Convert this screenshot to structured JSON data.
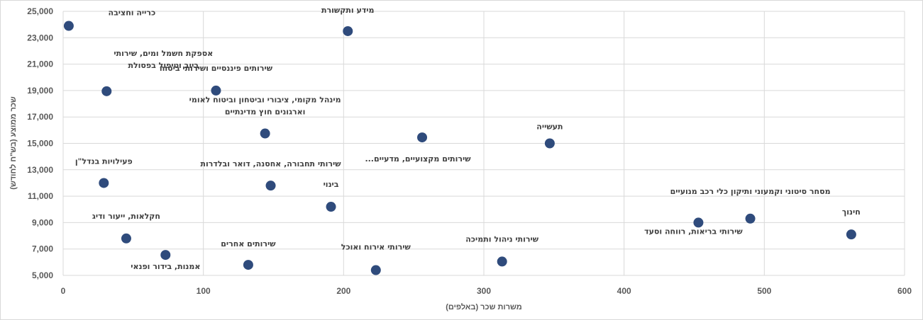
{
  "chart_data": {
    "type": "scatter",
    "xlabel": "משרות שכר (באלפים)",
    "ylabel": "שכר ממוצע (בש\"ח לחודש)",
    "xlim": [
      0,
      600
    ],
    "ylim": [
      5000,
      25000
    ],
    "x_ticks": [
      "0",
      "100",
      "200",
      "300",
      "400",
      "500",
      "600"
    ],
    "y_ticks": [
      "5,000",
      "7,000",
      "9,000",
      "11,000",
      "13,000",
      "15,000",
      "17,000",
      "19,000",
      "21,000",
      "23,000",
      "25,000"
    ],
    "grid": true,
    "legend": "none",
    "colors": {
      "marker": "#2f4b7c",
      "grid": "#d9d9d9",
      "text": "#595959",
      "label": "#404040"
    },
    "points": [
      {
        "label": [
          "כרייה וחציבה"
        ],
        "x": 4,
        "y": 23900
      },
      {
        "label": [
          "מידע ותקשורת"
        ],
        "x": 203,
        "y": 23500
      },
      {
        "label": [
          "אספקת חשמל ומים, שירותי",
          "ביוב וטיפול בפסולת"
        ],
        "x": 31,
        "y": 18950
      },
      {
        "label": [
          "שירותים פיננסיים ושירותי ביטוח"
        ],
        "x": 109,
        "y": 19000
      },
      {
        "label": [
          "מינהל מקומי, ציבורי וביטחון וביטוח לאומי",
          "וארגונים חוץ מדינתיים"
        ],
        "x": 144,
        "y": 15750
      },
      {
        "label": [
          "שירותים מקצועיים, מדעיים..."
        ],
        "x": 256,
        "y": 15450
      },
      {
        "label": [
          "תעשייה"
        ],
        "x": 347,
        "y": 15000
      },
      {
        "label": [
          "פעילויות בנדל\"ן"
        ],
        "x": 29,
        "y": 12000
      },
      {
        "label": [
          "שירותי תחבורה, אחסנה, דואר ובלדרות"
        ],
        "x": 148,
        "y": 11800
      },
      {
        "label": [
          "בינוי"
        ],
        "x": 191,
        "y": 10200
      },
      {
        "label": [
          "מסחר סיטוני וקמעוני ותיקון כלי רכב מנועיים"
        ],
        "x": 490,
        "y": 9300
      },
      {
        "label": [
          "שירותי בריאות, רווחה וסעד"
        ],
        "x": 453,
        "y": 9000
      },
      {
        "label": [
          "חינוך"
        ],
        "x": 562,
        "y": 8100
      },
      {
        "label": [
          "חקלאות, ייעור ודיג"
        ],
        "x": 45,
        "y": 7800
      },
      {
        "label": [
          "אמנות, בידור ופנאי"
        ],
        "x": 73,
        "y": 6550
      },
      {
        "label": [
          "שירותים אחרים"
        ],
        "x": 132,
        "y": 5800
      },
      {
        "label": [
          "שירותי ניהול ותמיכה"
        ],
        "x": 313,
        "y": 6050
      },
      {
        "label": [
          "שירותי אירוח ואוכל"
        ],
        "x": 223,
        "y": 5400
      }
    ]
  }
}
